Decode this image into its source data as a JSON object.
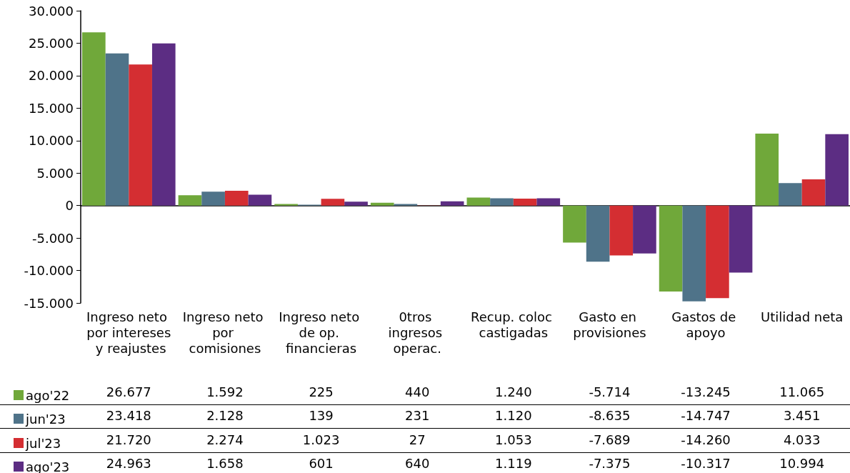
{
  "chart_data": {
    "type": "bar",
    "categories": [
      "Ingreso neto por intereses y reajustes",
      "Ingreso neto por comisiones",
      "Ingreso neto de op. financieras",
      "0tros ingresos operac.",
      "Recup. coloc castigadas",
      "Gasto en provisiones",
      "Gastos de apoyo",
      "Utilidad neta"
    ],
    "series": [
      {
        "name": "ago'22",
        "color": "#70a83a",
        "values": [
          26677,
          1592,
          225,
          440,
          1240,
          -5714,
          -13245,
          11065
        ],
        "value_labels": [
          "26.677",
          "1.592",
          "225",
          "440",
          "1.240",
          "-5.714",
          "-13.245",
          "11.065"
        ]
      },
      {
        "name": "jun'23",
        "color": "#4f7389",
        "values": [
          23418,
          2128,
          139,
          231,
          1120,
          -8635,
          -14747,
          3451
        ],
        "value_labels": [
          "23.418",
          "2.128",
          "139",
          "231",
          "1.120",
          "-8.635",
          "-14.747",
          "3.451"
        ]
      },
      {
        "name": "jul'23",
        "color": "#d42e32",
        "values": [
          21720,
          2274,
          1023,
          27,
          1053,
          -7689,
          -14260,
          4033
        ],
        "value_labels": [
          "21.720",
          "2.274",
          "1.023",
          "27",
          "1.053",
          "-7.689",
          "-14.260",
          "4.033"
        ]
      },
      {
        "name": "ago'23",
        "color": "#5c2d83",
        "values": [
          24963,
          1658,
          601,
          640,
          1119,
          -7375,
          -10317,
          10994
        ],
        "value_labels": [
          "24.963",
          "1.658",
          "601",
          "640",
          "1.119",
          "-7.375",
          "-10.317",
          "10.994"
        ]
      }
    ],
    "ylim": [
      -15000,
      30000
    ],
    "yticks": [
      {
        "value": -15000,
        "label": "-15.000"
      },
      {
        "value": -10000,
        "label": "-10.000"
      },
      {
        "value": -5000,
        "label": "-5.000"
      },
      {
        "value": 0,
        "label": "0"
      },
      {
        "value": 5000,
        "label": "5.000"
      },
      {
        "value": 10000,
        "label": "10.000"
      },
      {
        "value": 15000,
        "label": "15.000"
      },
      {
        "value": 20000,
        "label": "20.000"
      },
      {
        "value": 25000,
        "label": "25.000"
      },
      {
        "value": 30000,
        "label": "30.000"
      }
    ],
    "legend": "bottom left"
  }
}
